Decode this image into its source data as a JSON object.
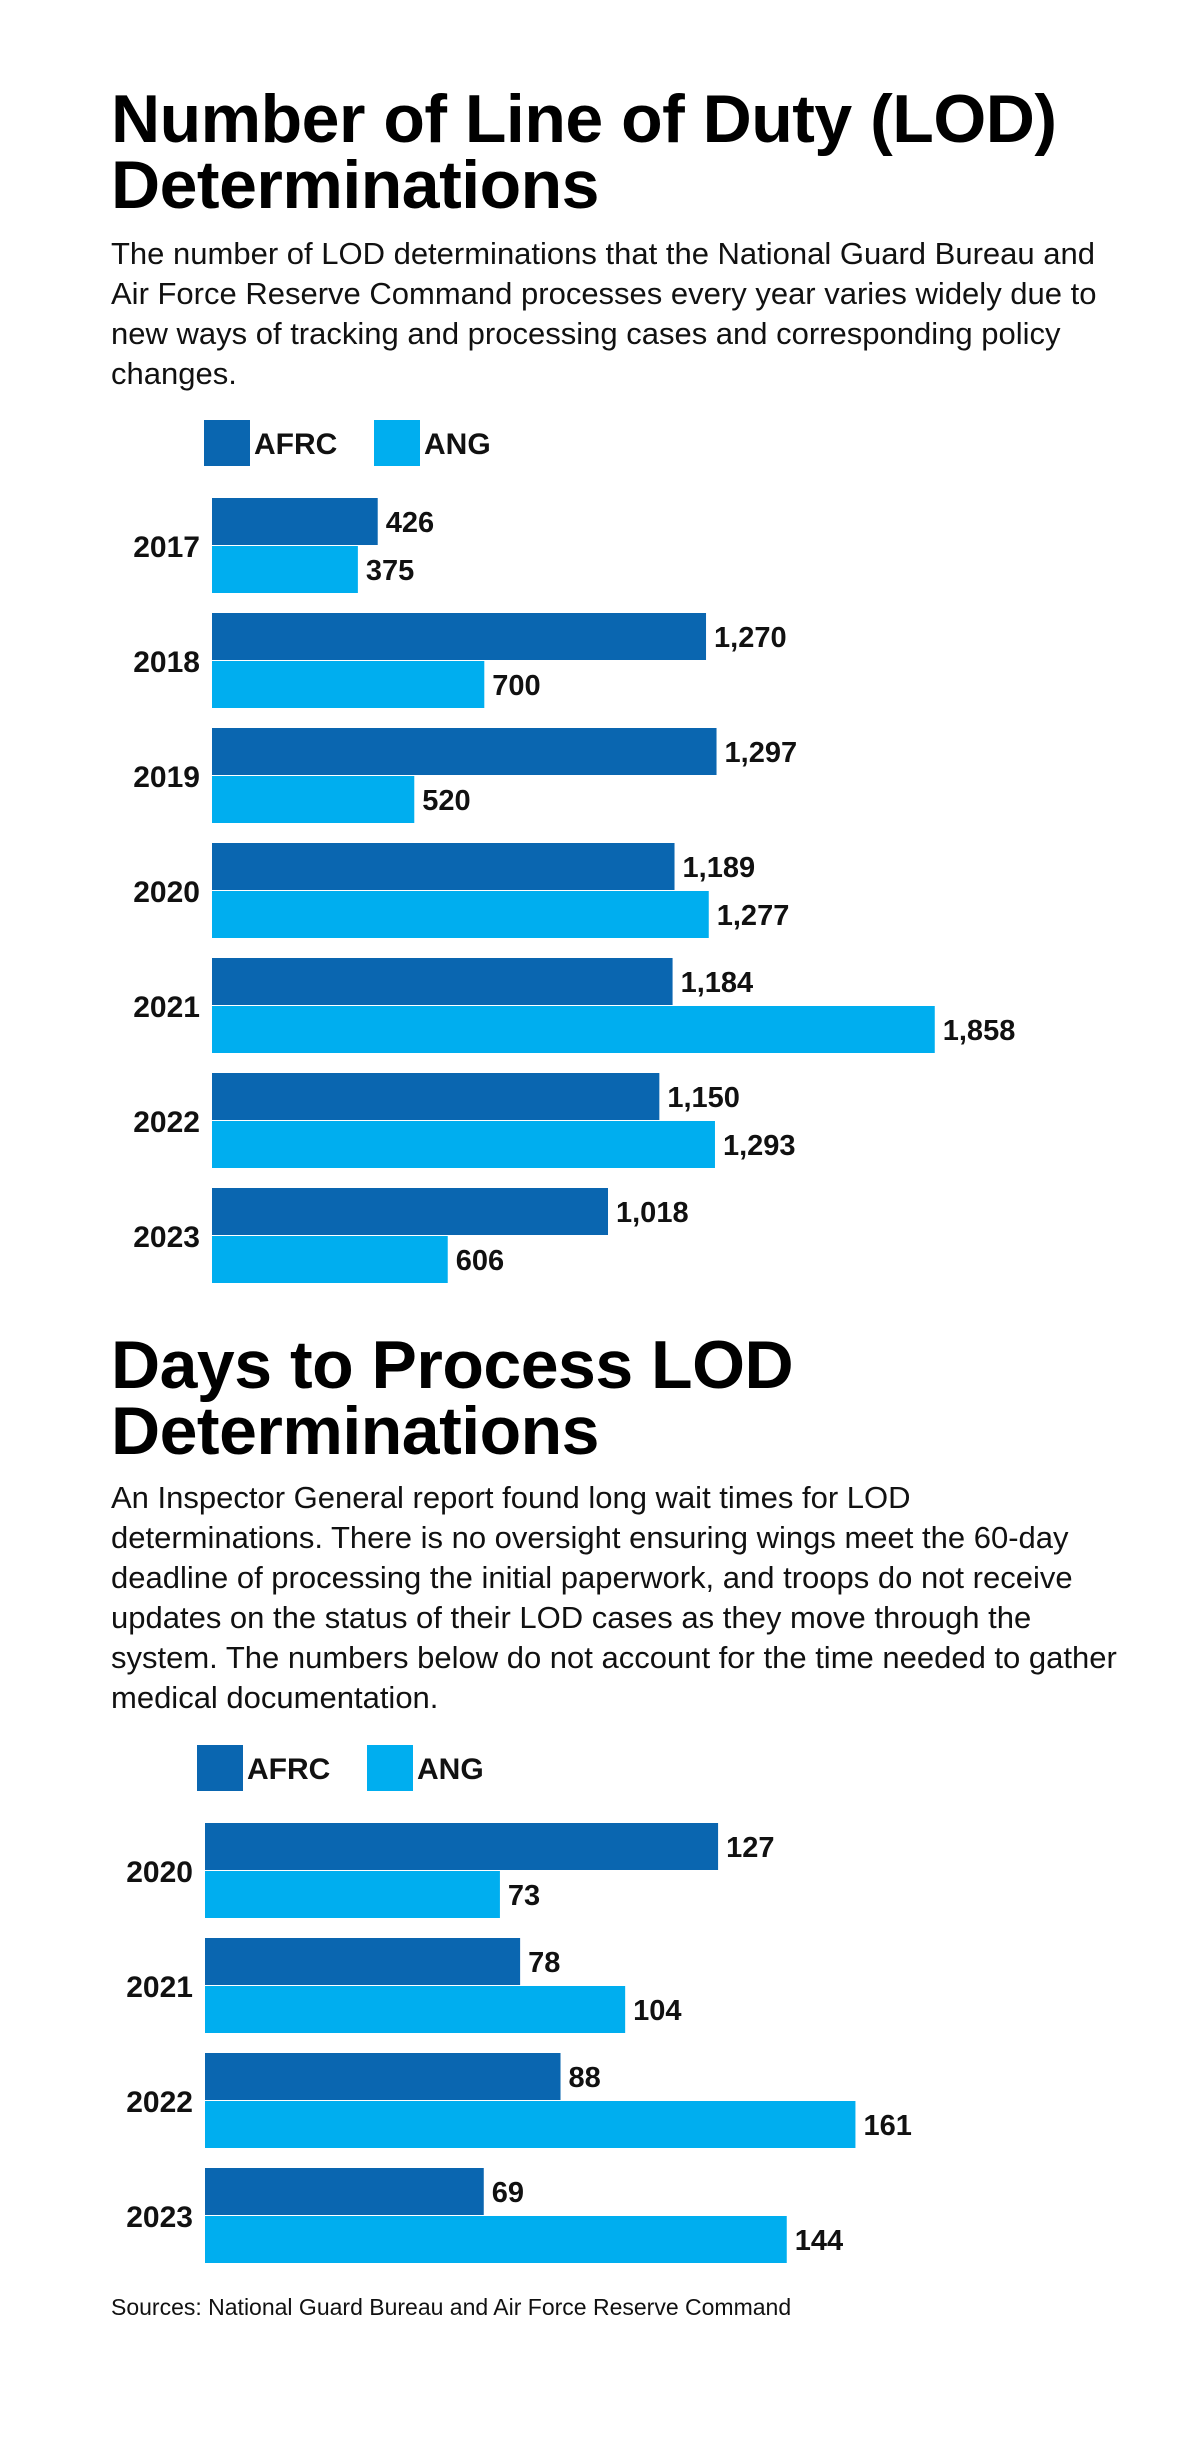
{
  "chart_data": [
    {
      "type": "bar",
      "orientation": "horizontal",
      "title": "Number of Line of Duty (LOD) Determinations",
      "subtitle": "The number of LOD determinations that the National Guard Bureau and Air Force Reserve Command processes every year varies widely due to new ways of tracking and processing cases and corresponding policy changes.",
      "categories": [
        "2017",
        "2018",
        "2019",
        "2020",
        "2021",
        "2022",
        "2023"
      ],
      "series": [
        {
          "name": "AFRC",
          "color": "#0a66b0",
          "values": [
            426,
            1270,
            1297,
            1189,
            1184,
            1150,
            1018
          ],
          "labels": [
            "426",
            "1,270",
            "1,297",
            "1,189",
            "1,184",
            "1,150",
            "1,018"
          ]
        },
        {
          "name": "ANG",
          "color": "#00aeef",
          "values": [
            375,
            700,
            520,
            1277,
            1858,
            1293,
            606
          ],
          "labels": [
            "375",
            "700",
            "520",
            "1,277",
            "1,858",
            "1,293",
            "606"
          ]
        }
      ],
      "xlim": [
        0,
        2000
      ],
      "legend": "top-left",
      "grid": false
    },
    {
      "type": "bar",
      "orientation": "horizontal",
      "title": "Days to Process LOD Determinations",
      "subtitle": "An Inspector General report found long wait times for LOD determinations. There is no oversight ensuring wings meet the 60-day deadline of processing the initial paperwork, and troops do not receive updates on the status of their LOD cases as they move through the system. The numbers below do not account for the time needed to gather medical documentation.",
      "categories": [
        "2020",
        "2021",
        "2022",
        "2023"
      ],
      "series": [
        {
          "name": "AFRC",
          "color": "#0a66b0",
          "values": [
            127,
            78,
            88,
            69
          ],
          "labels": [
            "127",
            "78",
            "88",
            "69"
          ]
        },
        {
          "name": "ANG",
          "color": "#00aeef",
          "values": [
            73,
            104,
            161,
            144
          ],
          "labels": [
            "73",
            "104",
            "161",
            "144"
          ]
        }
      ],
      "xlim": [
        0,
        200
      ],
      "legend": "top-left",
      "grid": false
    }
  ],
  "footer": {
    "sources": "Sources: National Guard Bureau and Air Force Reserve Command"
  }
}
